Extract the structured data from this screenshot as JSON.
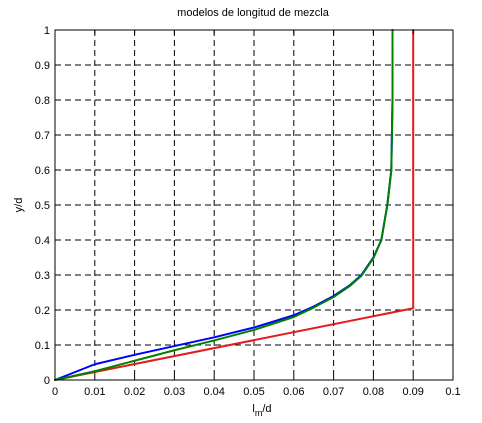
{
  "chart_data": {
    "type": "line",
    "title": "modelos de longitud de mezcla",
    "xlabel": "l",
    "xlabel_sub": "m",
    "xlabel_suffix": "/d",
    "ylabel": "y/d",
    "xlim": [
      0,
      0.1
    ],
    "ylim": [
      0,
      1
    ],
    "xticks": [
      "0",
      "0.01",
      "0.02",
      "0.03",
      "0.04",
      "0.05",
      "0.06",
      "0.07",
      "0.08",
      "0.09",
      "0.1"
    ],
    "yticks": [
      "0",
      "0.1",
      "0.2",
      "0.3",
      "0.4",
      "0.5",
      "0.6",
      "0.7",
      "0.8",
      "0.9",
      "1"
    ],
    "grid": true,
    "series": [
      {
        "color": "#e41a1c",
        "x": [
          0,
          0.09,
          0.09
        ],
        "y": [
          0,
          0.205,
          1.0
        ]
      },
      {
        "color": "#0000ff",
        "x": [
          0.0,
          0.01,
          0.02,
          0.03,
          0.04,
          0.05,
          0.06,
          0.065,
          0.07,
          0.074,
          0.077,
          0.08,
          0.082,
          0.0835,
          0.0845,
          0.0848,
          0.0848
        ],
        "y": [
          0.0,
          0.045,
          0.072,
          0.097,
          0.122,
          0.15,
          0.185,
          0.21,
          0.24,
          0.27,
          0.3,
          0.35,
          0.4,
          0.5,
          0.6,
          0.8,
          1.0
        ]
      },
      {
        "color": "#008000",
        "x": [
          0.0,
          0.01,
          0.02,
          0.03,
          0.04,
          0.05,
          0.06,
          0.065,
          0.07,
          0.074,
          0.077,
          0.08,
          0.082,
          0.0835,
          0.0845,
          0.0848,
          0.0848
        ],
        "y": [
          0.0,
          0.025,
          0.055,
          0.085,
          0.113,
          0.143,
          0.18,
          0.207,
          0.237,
          0.268,
          0.298,
          0.348,
          0.4,
          0.5,
          0.6,
          0.8,
          1.0
        ]
      }
    ]
  }
}
